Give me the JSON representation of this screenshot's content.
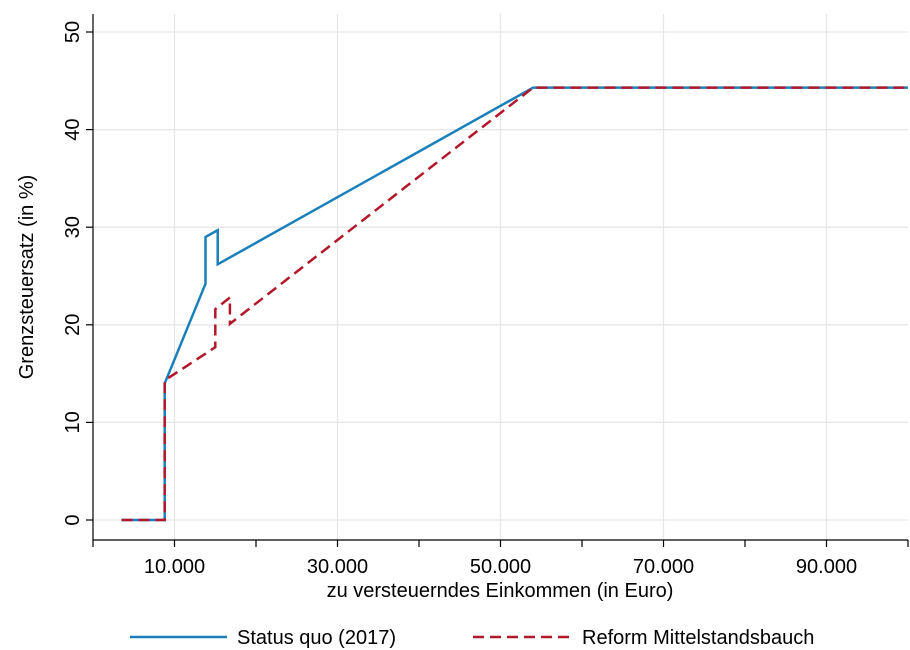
{
  "chart_data": {
    "type": "line",
    "xlabel": "zu versteuerndes Einkommen (in Euro)",
    "ylabel": "Grenzsteuersatz (in %)",
    "xlim": [
      0,
      100000
    ],
    "ylim": [
      0,
      50
    ],
    "x_ticks": [
      {
        "value": 10000,
        "label": "10.000"
      },
      {
        "value": 30000,
        "label": "30.000"
      },
      {
        "value": 50000,
        "label": "50.000"
      },
      {
        "value": 70000,
        "label": "70.000"
      },
      {
        "value": 90000,
        "label": "90.000"
      }
    ],
    "x_minor_ticks": [
      0,
      20000,
      40000,
      60000,
      80000,
      100000
    ],
    "y_ticks": [
      {
        "value": 0,
        "label": "0"
      },
      {
        "value": 10,
        "label": "10"
      },
      {
        "value": 20,
        "label": "20"
      },
      {
        "value": 30,
        "label": "30"
      },
      {
        "value": 40,
        "label": "40"
      },
      {
        "value": 50,
        "label": "50"
      }
    ],
    "grid": true,
    "legend_position": "bottom",
    "series": [
      {
        "name": "Status quo (2017)",
        "color": "#1a80bb",
        "dash": "solid",
        "points": [
          [
            3500,
            0
          ],
          [
            8800,
            0
          ],
          [
            8800,
            14
          ],
          [
            13800,
            24.2
          ],
          [
            13800,
            29
          ],
          [
            15300,
            29.7
          ],
          [
            15300,
            26.2
          ],
          [
            54000,
            44.3
          ],
          [
            100000,
            44.3
          ]
        ]
      },
      {
        "name": "Reform Mittelstandsbauch",
        "color": "#b2182b",
        "dash": "dashed",
        "points": [
          [
            3500,
            0
          ],
          [
            8800,
            0
          ],
          [
            8800,
            14.3
          ],
          [
            15000,
            17.7
          ],
          [
            15000,
            21.6
          ],
          [
            16800,
            22.8
          ],
          [
            16800,
            20.1
          ],
          [
            54000,
            44.3
          ],
          [
            100000,
            44.3
          ]
        ]
      }
    ]
  }
}
